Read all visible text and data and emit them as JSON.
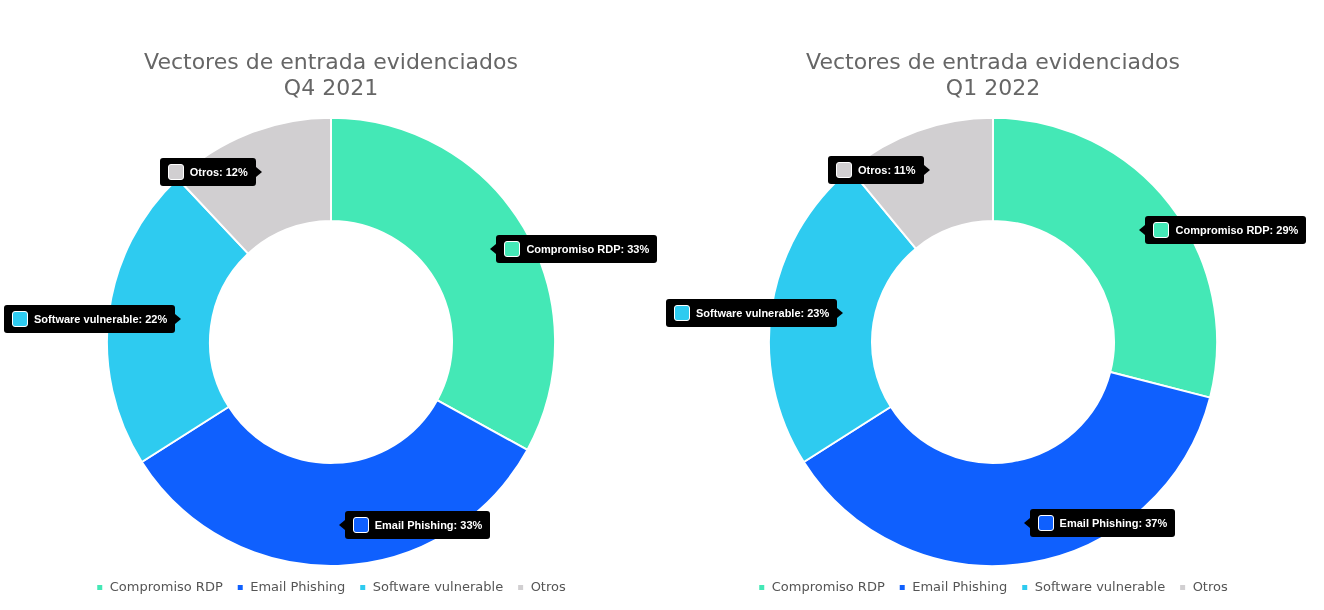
{
  "chart_data": [
    {
      "type": "donut",
      "title": "Vectores de entrada evidenciados\nQ4 2021",
      "categories": [
        "Compromiso RDP",
        "Email Phishing",
        "Software vulnerable",
        "Otros"
      ],
      "values": [
        33,
        33,
        22,
        12
      ],
      "colors": [
        "#44e8b6",
        "#0f60fe",
        "#2ecbf0",
        "#d1cfd1"
      ],
      "value_labels": [
        "Compromiso RDP: 33%",
        "Email Phishing: 33%",
        "Software vulnerable: 22%",
        "Otros: 12%"
      ],
      "legend": "bottom"
    },
    {
      "type": "donut",
      "title": "Vectores de entrada evidenciados\nQ1 2022",
      "categories": [
        "Compromiso RDP",
        "Email Phishing",
        "Software vulnerable",
        "Otros"
      ],
      "values": [
        29,
        37,
        23,
        11
      ],
      "colors": [
        "#44e8b6",
        "#0f60fe",
        "#2ecbf0",
        "#d1cfd1"
      ],
      "value_labels": [
        "Compromiso RDP: 29%",
        "Email Phishing: 37%",
        "Software vulnerable: 23%",
        "Otros: 11%"
      ],
      "legend": "bottom"
    }
  ]
}
